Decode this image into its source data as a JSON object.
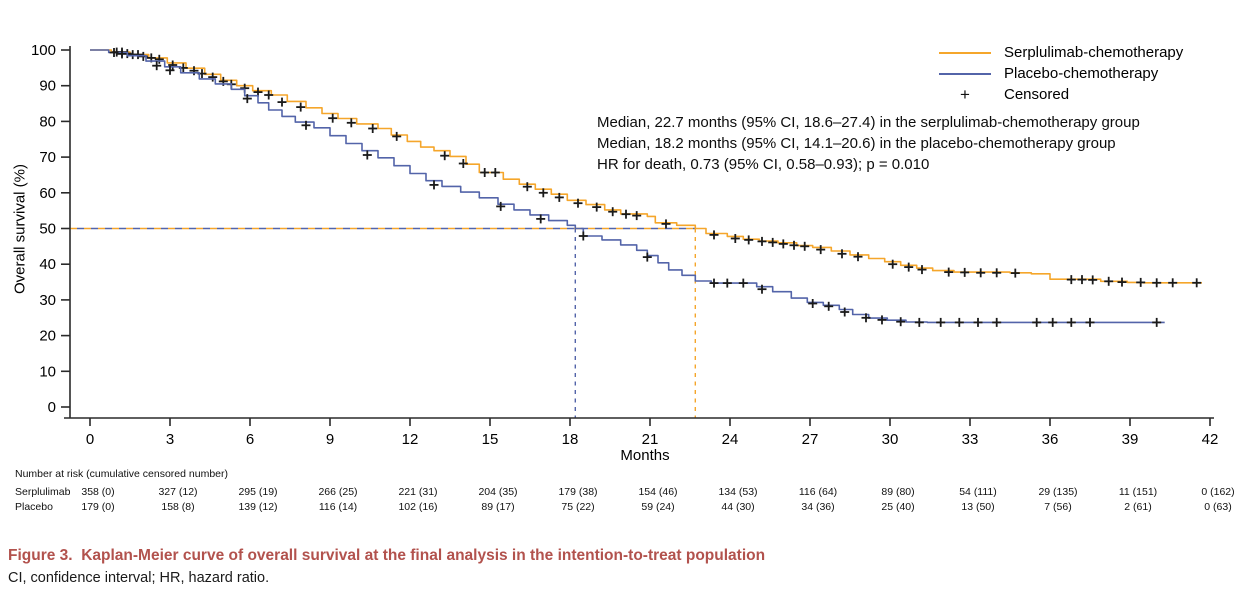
{
  "figure": {
    "caption_title": "Figure 3.  Kaplan-Meier curve of overall survival at the final analysis in the intention-to-treat population",
    "caption_footnote": "CI, confidence interval; HR, hazard ratio.",
    "caption_color": "#B2524D"
  },
  "annotation": {
    "line1": "Median, 22.7 months (95% CI, 18.6–27.4) in the serplulimab-chemotherapy group",
    "line2": "Median, 18.2 months (95% CI, 14.1–20.6) in the placebo-chemotherapy group",
    "line3": "HR for death, 0.73 (95% CI, 0.58–0.93); p = 0.010"
  },
  "legend": {
    "position": "top-right",
    "items": [
      {
        "label": "Serplulimab-chemotherapy",
        "color": "#F5A62B",
        "type": "line"
      },
      {
        "label": "Placebo-chemotherapy",
        "color": "#5364A9",
        "type": "line"
      },
      {
        "label": "Censored",
        "symbol": "+",
        "type": "marker"
      }
    ]
  },
  "risk_table": {
    "header": "Number at risk (cumulative censored number)",
    "rows": [
      {
        "label": "Serplulimab",
        "values": [
          "358 (0)",
          "327 (12)",
          "295 (19)",
          "266 (25)",
          "221 (31)",
          "204 (35)",
          "179 (38)",
          "154 (46)",
          "134 (53)",
          "116 (64)",
          "89 (80)",
          "54 (111)",
          "29 (135)",
          "11 (151)",
          "0 (162)"
        ]
      },
      {
        "label": "Placebo",
        "values": [
          "179 (0)",
          "158 (8)",
          "139 (12)",
          "116 (14)",
          "102 (16)",
          "89 (17)",
          "75 (22)",
          "59 (24)",
          "44 (30)",
          "34 (36)",
          "25 (40)",
          "13 (50)",
          "7 (56)",
          "2 (61)",
          "0 (63)"
        ]
      }
    ]
  },
  "chart_data": {
    "type": "line",
    "subtype": "kaplan-meier-step",
    "title": "",
    "xlabel": "Months",
    "ylabel": "Overall survival (%)",
    "xlim": [
      0,
      42
    ],
    "ylim": [
      0,
      100
    ],
    "xticks": [
      0,
      3,
      6,
      9,
      12,
      15,
      18,
      21,
      24,
      27,
      30,
      33,
      36,
      39,
      42
    ],
    "yticks": [
      0,
      10,
      20,
      30,
      40,
      50,
      60,
      70,
      80,
      90,
      100
    ],
    "grid": false,
    "axis_color": "#2a2a2a",
    "censor_color": "#1a1a1a",
    "median_reference": {
      "y_percent": 50,
      "x_serplulimab": 22.7,
      "x_placebo": 18.2
    },
    "series": [
      {
        "name": "Serplulimab-chemotherapy",
        "color": "#F5A62B",
        "median_months": 22.7,
        "steps": [
          [
            0,
            100
          ],
          [
            0.8,
            99.4
          ],
          [
            1.5,
            98.7
          ],
          [
            2.2,
            97.8
          ],
          [
            2.9,
            96.4
          ],
          [
            3.6,
            94.9
          ],
          [
            4.3,
            93.2
          ],
          [
            4.9,
            91.5
          ],
          [
            5.5,
            90.0
          ],
          [
            6.1,
            88.6
          ],
          [
            6.8,
            87.4
          ],
          [
            7.4,
            85.6
          ],
          [
            8.1,
            83.8
          ],
          [
            8.7,
            82.2
          ],
          [
            9.3,
            80.8
          ],
          [
            10.0,
            79.3
          ],
          [
            10.8,
            78.0
          ],
          [
            11.3,
            76.2
          ],
          [
            11.9,
            74.4
          ],
          [
            12.4,
            72.8
          ],
          [
            12.9,
            71.8
          ],
          [
            13.5,
            70.2
          ],
          [
            14.1,
            68.0
          ],
          [
            14.6,
            65.7
          ],
          [
            15.5,
            63.8
          ],
          [
            16.1,
            62.4
          ],
          [
            16.7,
            61.0
          ],
          [
            17.3,
            59.6
          ],
          [
            17.9,
            57.9
          ],
          [
            18.6,
            56.7
          ],
          [
            19.3,
            55.2
          ],
          [
            19.9,
            54.1
          ],
          [
            20.9,
            53.4
          ],
          [
            21.2,
            51.6
          ],
          [
            22.0,
            50.9
          ],
          [
            22.7,
            50.0
          ],
          [
            23.1,
            48.6
          ],
          [
            23.9,
            47.8
          ],
          [
            24.5,
            47.0
          ],
          [
            25.1,
            46.5
          ],
          [
            25.8,
            46.0
          ],
          [
            26.5,
            45.2
          ],
          [
            27.1,
            44.7
          ],
          [
            27.8,
            43.7
          ],
          [
            28.5,
            42.6
          ],
          [
            29.2,
            41.6
          ],
          [
            29.8,
            40.7
          ],
          [
            30.4,
            39.7
          ],
          [
            31.0,
            38.9
          ],
          [
            31.6,
            38.2
          ],
          [
            32.4,
            37.8
          ],
          [
            34.5,
            37.6
          ],
          [
            35.3,
            37.3
          ],
          [
            36.0,
            35.8
          ],
          [
            37.9,
            35.2
          ],
          [
            38.9,
            34.9
          ],
          [
            39.5,
            34.8
          ],
          [
            41.7,
            34.8
          ]
        ],
        "censors": [
          [
            1.0,
            99.4
          ],
          [
            1.2,
            99.4
          ],
          [
            1.4,
            99.0
          ],
          [
            1.6,
            98.7
          ],
          [
            1.8,
            98.7
          ],
          [
            2.0,
            98.2
          ],
          [
            2.3,
            97.8
          ],
          [
            2.6,
            97.4
          ],
          [
            3.1,
            95.8
          ],
          [
            3.5,
            95.0
          ],
          [
            3.9,
            94.2
          ],
          [
            4.2,
            93.4
          ],
          [
            4.6,
            92.4
          ],
          [
            5.0,
            91.2
          ],
          [
            5.3,
            90.4
          ],
          [
            5.8,
            89.3
          ],
          [
            6.3,
            88.2
          ],
          [
            6.7,
            87.4
          ],
          [
            7.2,
            85.4
          ],
          [
            7.9,
            84.0
          ],
          [
            9.1,
            80.9
          ],
          [
            9.8,
            79.6
          ],
          [
            10.6,
            78.0
          ],
          [
            11.5,
            75.8
          ],
          [
            13.3,
            70.4
          ],
          [
            14.0,
            68.2
          ],
          [
            14.8,
            65.7
          ],
          [
            15.2,
            65.7
          ],
          [
            16.4,
            61.7
          ],
          [
            17.0,
            60.0
          ],
          [
            17.6,
            58.7
          ],
          [
            18.3,
            57.1
          ],
          [
            19.0,
            56.0
          ],
          [
            19.6,
            54.7
          ],
          [
            20.1,
            54.0
          ],
          [
            20.5,
            53.6
          ],
          [
            21.6,
            51.3
          ],
          [
            23.4,
            48.2
          ],
          [
            24.2,
            47.2
          ],
          [
            24.7,
            46.8
          ],
          [
            25.2,
            46.4
          ],
          [
            25.6,
            46.1
          ],
          [
            26.0,
            45.7
          ],
          [
            26.4,
            45.3
          ],
          [
            26.8,
            45.0
          ],
          [
            27.4,
            44.1
          ],
          [
            28.2,
            42.9
          ],
          [
            28.8,
            42.1
          ],
          [
            30.1,
            40.0
          ],
          [
            30.7,
            39.2
          ],
          [
            31.2,
            38.5
          ],
          [
            32.2,
            37.8
          ],
          [
            32.8,
            37.7
          ],
          [
            33.4,
            37.6
          ],
          [
            34.0,
            37.6
          ],
          [
            34.7,
            37.5
          ],
          [
            36.8,
            35.7
          ],
          [
            37.2,
            35.7
          ],
          [
            37.6,
            35.6
          ],
          [
            38.2,
            35.2
          ],
          [
            38.7,
            35.0
          ],
          [
            39.4,
            34.9
          ],
          [
            40.0,
            34.8
          ],
          [
            40.6,
            34.8
          ],
          [
            41.5,
            34.8
          ]
        ]
      },
      {
        "name": "Placebo-chemotherapy",
        "color": "#5364A9",
        "median_months": 18.2,
        "steps": [
          [
            0,
            100
          ],
          [
            0.7,
            99.3
          ],
          [
            1.4,
            98.4
          ],
          [
            2.1,
            96.9
          ],
          [
            2.8,
            95.3
          ],
          [
            3.4,
            93.6
          ],
          [
            4.1,
            91.9
          ],
          [
            4.7,
            90.5
          ],
          [
            5.3,
            89.0
          ],
          [
            5.8,
            87.2
          ],
          [
            6.3,
            85.2
          ],
          [
            6.7,
            83.2
          ],
          [
            7.2,
            81.4
          ],
          [
            7.7,
            79.8
          ],
          [
            8.4,
            78.2
          ],
          [
            9.0,
            76.0
          ],
          [
            9.6,
            73.8
          ],
          [
            10.2,
            71.8
          ],
          [
            10.8,
            69.8
          ],
          [
            11.4,
            67.6
          ],
          [
            12.0,
            65.4
          ],
          [
            12.6,
            63.4
          ],
          [
            13.2,
            61.8
          ],
          [
            13.9,
            60.2
          ],
          [
            14.6,
            58.6
          ],
          [
            15.3,
            56.8
          ],
          [
            15.9,
            55.2
          ],
          [
            16.5,
            53.8
          ],
          [
            17.2,
            52.2
          ],
          [
            17.9,
            50.9
          ],
          [
            18.2,
            50.0
          ],
          [
            18.5,
            47.9
          ],
          [
            19.2,
            46.8
          ],
          [
            19.9,
            45.4
          ],
          [
            20.5,
            43.9
          ],
          [
            20.9,
            42.4
          ],
          [
            21.3,
            40.4
          ],
          [
            21.7,
            38.4
          ],
          [
            22.2,
            36.9
          ],
          [
            22.7,
            35.3
          ],
          [
            23.3,
            34.7
          ],
          [
            25.0,
            33.7
          ],
          [
            25.6,
            32.3
          ],
          [
            26.3,
            30.5
          ],
          [
            26.9,
            29.3
          ],
          [
            27.5,
            28.5
          ],
          [
            28.1,
            27.3
          ],
          [
            28.6,
            25.9
          ],
          [
            29.2,
            24.9
          ],
          [
            29.9,
            24.3
          ],
          [
            30.6,
            23.8
          ],
          [
            31.4,
            23.7
          ],
          [
            40.3,
            23.7
          ]
        ],
        "censors": [
          [
            0.9,
            99.3
          ],
          [
            1.2,
            98.9
          ],
          [
            2.5,
            95.6
          ],
          [
            3.0,
            94.3
          ],
          [
            5.9,
            86.4
          ],
          [
            8.1,
            78.9
          ],
          [
            10.4,
            70.6
          ],
          [
            12.9,
            62.2
          ],
          [
            15.4,
            56.2
          ],
          [
            16.9,
            52.7
          ],
          [
            18.5,
            47.9
          ],
          [
            20.9,
            42.0
          ],
          [
            23.4,
            34.7
          ],
          [
            23.9,
            34.7
          ],
          [
            24.5,
            34.7
          ],
          [
            25.2,
            33.0
          ],
          [
            27.1,
            29.0
          ],
          [
            27.7,
            28.2
          ],
          [
            28.3,
            26.6
          ],
          [
            29.1,
            25.0
          ],
          [
            29.7,
            24.4
          ],
          [
            30.4,
            23.9
          ],
          [
            31.1,
            23.7
          ],
          [
            31.9,
            23.7
          ],
          [
            32.6,
            23.7
          ],
          [
            33.3,
            23.7
          ],
          [
            34.0,
            23.7
          ],
          [
            35.5,
            23.7
          ],
          [
            36.1,
            23.7
          ],
          [
            36.8,
            23.7
          ],
          [
            37.5,
            23.7
          ],
          [
            40.0,
            23.7
          ]
        ]
      }
    ]
  }
}
